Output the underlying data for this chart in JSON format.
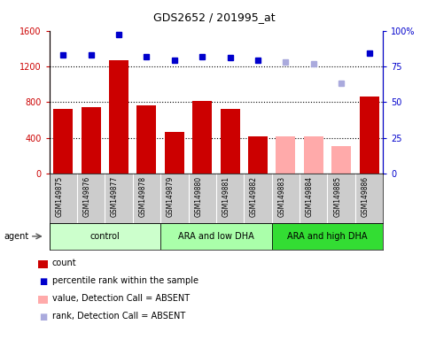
{
  "title": "GDS2652 / 201995_at",
  "samples": [
    "GSM149875",
    "GSM149876",
    "GSM149877",
    "GSM149878",
    "GSM149879",
    "GSM149880",
    "GSM149881",
    "GSM149882",
    "GSM149883",
    "GSM149884",
    "GSM149885",
    "GSM149886"
  ],
  "counts": [
    720,
    740,
    1270,
    760,
    460,
    810,
    720,
    420,
    420,
    415,
    310,
    860
  ],
  "counts_absent": [
    false,
    false,
    false,
    false,
    false,
    false,
    false,
    false,
    true,
    true,
    true,
    false
  ],
  "percentile_ranks": [
    83,
    83,
    97,
    82,
    79,
    82,
    81,
    79,
    78,
    77,
    63,
    84
  ],
  "rank_absent": [
    false,
    false,
    false,
    false,
    false,
    false,
    false,
    false,
    true,
    true,
    true,
    false
  ],
  "ylim_left": [
    0,
    1600
  ],
  "ylim_right": [
    0,
    100
  ],
  "yticks_left": [
    0,
    400,
    800,
    1200,
    1600
  ],
  "yticks_right": [
    0,
    25,
    50,
    75,
    100
  ],
  "groups": [
    {
      "label": "control",
      "start": 0,
      "end": 3,
      "color": "#ccffcc"
    },
    {
      "label": "ARA and low DHA",
      "start": 4,
      "end": 7,
      "color": "#aaffaa"
    },
    {
      "label": "ARA and high DHA",
      "start": 8,
      "end": 11,
      "color": "#33dd33"
    }
  ],
  "bar_color_present": "#cc0000",
  "bar_color_absent": "#ffaaaa",
  "rank_color_present": "#0000cc",
  "rank_color_absent": "#aaaadd",
  "bg_color_label": "#cccccc",
  "left_tick_color": "#cc0000",
  "right_tick_color": "#0000cc",
  "legend_items": [
    {
      "label": "count",
      "color": "#cc0000",
      "type": "bar"
    },
    {
      "label": "percentile rank within the sample",
      "color": "#0000cc",
      "type": "square"
    },
    {
      "label": "value, Detection Call = ABSENT",
      "color": "#ffaaaa",
      "type": "bar"
    },
    {
      "label": "rank, Detection Call = ABSENT",
      "color": "#aaaadd",
      "type": "square"
    }
  ]
}
